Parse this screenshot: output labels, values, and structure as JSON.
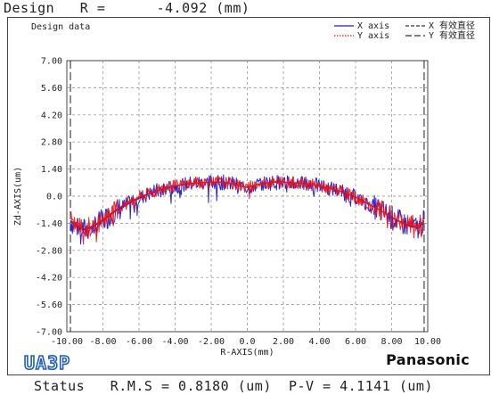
{
  "header": {
    "label": "Design",
    "r_label": "R =",
    "r_value": "-4.092",
    "r_unit": "(mm)"
  },
  "panel": {
    "title": "Design data",
    "logo_text": "UA3P",
    "brand": "Panasonic"
  },
  "legend": [
    {
      "name": "X axis",
      "color": "#1a1acc",
      "style": "solid"
    },
    {
      "name": "Y axis",
      "color": "#ee1111",
      "style": "dotted"
    },
    {
      "name": "X 有效直径",
      "color": "#333333",
      "style": "dashed"
    },
    {
      "name": "Y 有效直径",
      "color": "#333333",
      "style": "longdash"
    }
  ],
  "footer": {
    "status_label": "Status",
    "rms_label": "R.M.S =",
    "rms_value": "0.8180",
    "rms_unit": "(um)",
    "pv_label": "P-V =",
    "pv_value": "4.1141",
    "pv_unit": "(um)"
  },
  "chart_data": {
    "type": "line",
    "xlabel": "R-AXIS(mm)",
    "ylabel": "Zd-AXIS(um)",
    "xlim": [
      -10,
      10
    ],
    "ylim": [
      -7,
      7
    ],
    "x_ticks": [
      "-10.00",
      "-8.00",
      "-6.00",
      "-4.00",
      "-2.00",
      "0.0",
      "2.00",
      "4.00",
      "6.00",
      "8.00",
      "10.00"
    ],
    "y_ticks": [
      "7.00",
      "5.60",
      "4.20",
      "2.80",
      "1.40",
      "0.0",
      "-1.40",
      "-2.80",
      "-4.20",
      "-5.60",
      "-7.00"
    ],
    "grid": true,
    "effective_diameter": [
      -9.8,
      9.8
    ],
    "series": [
      {
        "name": "X axis",
        "color": "#1a1acc",
        "x": [
          -9.8,
          -9.5,
          -9.0,
          -8.5,
          -8.0,
          -7.5,
          -7.0,
          -6.5,
          -6.0,
          -5.5,
          -5.0,
          -4.5,
          -4.0,
          -3.5,
          -3.0,
          -2.5,
          -2.0,
          -1.5,
          -1.0,
          -0.5,
          0.0,
          0.5,
          1.0,
          1.5,
          2.0,
          2.5,
          3.0,
          3.5,
          4.0,
          4.5,
          5.0,
          5.5,
          6.0,
          6.5,
          7.0,
          7.5,
          8.0,
          8.5,
          9.0,
          9.5,
          9.8
        ],
        "y": [
          -1.3,
          -1.55,
          -1.75,
          -1.55,
          -1.25,
          -0.9,
          -0.6,
          -0.35,
          -0.1,
          0.1,
          0.28,
          0.42,
          0.52,
          0.6,
          0.66,
          0.7,
          0.72,
          0.72,
          0.68,
          0.55,
          0.45,
          0.58,
          0.68,
          0.72,
          0.72,
          0.7,
          0.66,
          0.6,
          0.52,
          0.42,
          0.3,
          0.12,
          -0.05,
          -0.3,
          -0.55,
          -0.8,
          -1.1,
          -1.35,
          -1.55,
          -1.65,
          -1.3
        ]
      },
      {
        "name": "Y axis",
        "color": "#ee1111",
        "x": [
          -9.8,
          -9.5,
          -9.0,
          -8.5,
          -8.0,
          -7.5,
          -7.0,
          -6.5,
          -6.0,
          -5.5,
          -5.0,
          -4.5,
          -4.0,
          -3.5,
          -3.0,
          -2.5,
          -2.0,
          -1.5,
          -1.0,
          -0.5,
          0.0,
          0.5,
          1.0,
          1.5,
          2.0,
          2.5,
          3.0,
          3.5,
          4.0,
          4.5,
          5.0,
          5.5,
          6.0,
          6.5,
          7.0,
          7.5,
          8.0,
          8.5,
          9.0,
          9.5,
          9.8
        ],
        "y": [
          -1.25,
          -1.5,
          -1.7,
          -1.5,
          -1.2,
          -0.85,
          -0.55,
          -0.3,
          -0.05,
          0.12,
          0.3,
          0.44,
          0.54,
          0.62,
          0.68,
          0.71,
          0.73,
          0.72,
          0.68,
          0.56,
          0.47,
          0.58,
          0.68,
          0.72,
          0.72,
          0.7,
          0.66,
          0.6,
          0.52,
          0.42,
          0.3,
          0.14,
          -0.05,
          -0.28,
          -0.55,
          -0.8,
          -1.08,
          -1.32,
          -1.5,
          -1.55,
          -1.25
        ]
      }
    ]
  }
}
